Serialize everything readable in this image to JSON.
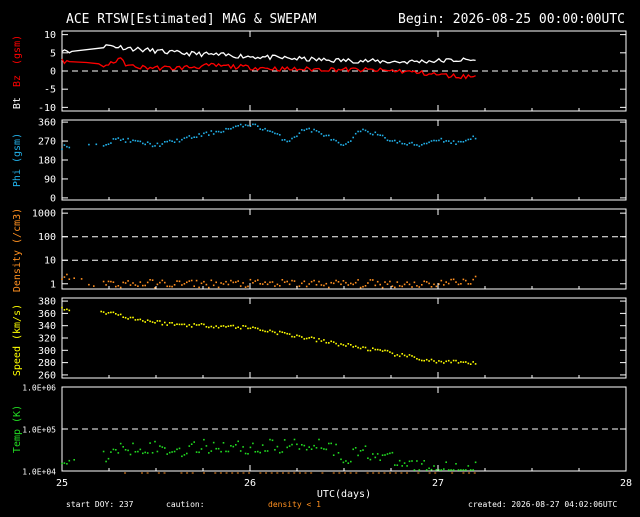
{
  "header": {
    "title": "ACE RTSW[Estimated] MAG & SWEPAM",
    "begin": "Begin: 2026-08-25 00:00:00UTC"
  },
  "footer": {
    "start_doy": "start DOY: 237",
    "caution": "caution:",
    "density_note": "density < 1",
    "created": "created: 2026-08-27 04:02:06UTC"
  },
  "colors": {
    "background": "#000000",
    "frame": "#ffffff",
    "bt": "#ffffff",
    "bz": "#ff0000",
    "phi": "#22b0e8",
    "density": "#ff9020",
    "speed": "#ffff00",
    "temp": "#22dd22",
    "caution_marks": "#ff9020"
  },
  "chart_data": [
    {
      "type": "line",
      "panel": "mag",
      "ylabel_parts": [
        "Bt",
        "Bz",
        "(gsm)"
      ],
      "yticks": [
        "10",
        "5",
        "0",
        "-5",
        "-10"
      ],
      "ylim": [
        -11,
        11
      ],
      "zero_line": 0,
      "series": [
        {
          "name": "Bt",
          "x": [
            25.0,
            25.05,
            25.25,
            25.4,
            25.6,
            25.8,
            26.0,
            26.2,
            26.4,
            26.6,
            26.8,
            27.0,
            27.1,
            27.2
          ],
          "y": [
            6.0,
            5.5,
            7.0,
            6.0,
            5.0,
            4.5,
            4.0,
            3.5,
            3.0,
            2.8,
            2.5,
            2.8,
            3.0,
            3.0
          ]
        },
        {
          "name": "Bz",
          "x": [
            25.0,
            25.05,
            25.25,
            25.3,
            25.35,
            25.4,
            25.6,
            25.8,
            26.0,
            26.2,
            26.4,
            26.6,
            26.8,
            27.0,
            27.1,
            27.2
          ],
          "y": [
            3.0,
            2.0,
            1.5,
            3.5,
            1.5,
            1.0,
            0.8,
            1.5,
            1.0,
            0.5,
            0.5,
            0.3,
            0.0,
            -1.0,
            -1.5,
            -1.5
          ]
        }
      ]
    },
    {
      "type": "scatter",
      "panel": "phi",
      "ylabel": "Phi (gsm)",
      "yticks": [
        "360",
        "270",
        "180",
        "90",
        "0"
      ],
      "ylim": [
        -10,
        370
      ],
      "series": [
        {
          "name": "Phi",
          "x": [
            25.0,
            25.05,
            25.2,
            25.3,
            25.5,
            25.6,
            25.8,
            25.9,
            26.0,
            26.1,
            26.2,
            26.3,
            26.4,
            26.5,
            26.6,
            26.7,
            26.8,
            26.9,
            27.0,
            27.1,
            27.2
          ],
          "y": [
            240,
            250,
            250,
            280,
            250,
            270,
            310,
            330,
            350,
            320,
            270,
            330,
            300,
            240,
            330,
            290,
            260,
            250,
            280,
            260,
            290
          ]
        }
      ]
    },
    {
      "type": "scatter",
      "panel": "density",
      "ylabel": "Density (/cm3)",
      "yscale": "log",
      "yticks": [
        "1000",
        "100",
        "10",
        "1"
      ],
      "ylim": [
        0.6,
        1500
      ],
      "series": [
        {
          "name": "Density",
          "x": [
            25.0,
            25.05,
            25.2,
            25.4,
            25.6,
            25.8,
            26.0,
            26.2,
            26.4,
            26.6,
            26.8,
            27.0,
            27.1,
            27.2
          ],
          "y": [
            2.0,
            1.5,
            1.0,
            1.0,
            1.0,
            1.0,
            1.0,
            1.0,
            1.0,
            1.0,
            1.0,
            1.0,
            1.2,
            1.4
          ]
        }
      ]
    },
    {
      "type": "scatter",
      "panel": "speed",
      "ylabel": "Speed (km/s)",
      "yticks": [
        "380",
        "360",
        "340",
        "320",
        "300",
        "280",
        "260"
      ],
      "ylim": [
        255,
        385
      ],
      "series": [
        {
          "name": "Speed",
          "x": [
            25.0,
            25.05,
            25.25,
            25.4,
            25.6,
            25.8,
            26.0,
            26.2,
            26.4,
            26.6,
            26.8,
            27.0,
            27.1,
            27.2
          ],
          "y": [
            368,
            362,
            362,
            350,
            342,
            340,
            337,
            326,
            314,
            304,
            292,
            281,
            280,
            278
          ]
        }
      ]
    },
    {
      "type": "scatter",
      "panel": "temp",
      "ylabel": "Temp (K)",
      "yscale": "log",
      "yticks": [
        "1.0E+06",
        "1.0E+05",
        "1.0E+04"
      ],
      "ylim": [
        10000,
        1000000
      ],
      "series": [
        {
          "name": "Temp",
          "x": [
            25.0,
            25.05,
            25.25,
            25.4,
            25.6,
            25.8,
            26.0,
            26.2,
            26.4,
            26.5,
            26.6,
            26.8,
            27.0,
            27.1,
            27.2
          ],
          "y": [
            20000,
            15000,
            25000,
            40000,
            30000,
            40000,
            35000,
            40000,
            45000,
            20000,
            30000,
            15000,
            12000,
            11000,
            12000
          ]
        }
      ]
    }
  ],
  "xaxis": {
    "label": "UTC(days)",
    "ticks": [
      "25",
      "26",
      "27",
      "28"
    ],
    "xlim": [
      25,
      28
    ]
  }
}
